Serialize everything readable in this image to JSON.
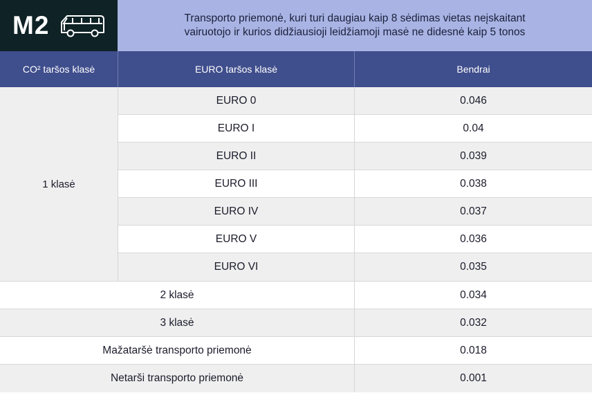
{
  "header": {
    "category_code": "M2",
    "vehicle_icon": "van-icon",
    "description_line1": "Transporto priemonė, kuri turi daugiau kaip 8 sėdimas vietas neįskaitant",
    "description_line2": "vairuotojo ir kurios didžiausioji leidžiamoji masė ne didesnė kaip 5 tonos"
  },
  "columns": {
    "co2_class": "CO² taršos klasė",
    "euro_class": "EURO taršos klasė",
    "total": "Bendrai"
  },
  "group": {
    "label": "1 klasė",
    "rows": [
      {
        "euro": "EURO 0",
        "value": "0.046"
      },
      {
        "euro": "EURO I",
        "value": "0.04"
      },
      {
        "euro": "EURO II",
        "value": "0.039"
      },
      {
        "euro": "EURO III",
        "value": "0.038"
      },
      {
        "euro": "EURO IV",
        "value": "0.037"
      },
      {
        "euro": "EURO V",
        "value": "0.036"
      },
      {
        "euro": "EURO VI",
        "value": "0.035"
      }
    ]
  },
  "other_rows": [
    {
      "label": "2 klasė",
      "value": "0.034"
    },
    {
      "label": "3 klasė",
      "value": "0.032"
    },
    {
      "label": "Mažataršė transporto priemonė",
      "value": "0.018"
    },
    {
      "label": "Netarši transporto priemonė",
      "value": "0.001"
    }
  ],
  "colors": {
    "badge_bg": "#0f2226",
    "description_bg": "#a9b4e4",
    "header_bg": "#3f4e8c",
    "alt_row_bg": "#efefef"
  }
}
